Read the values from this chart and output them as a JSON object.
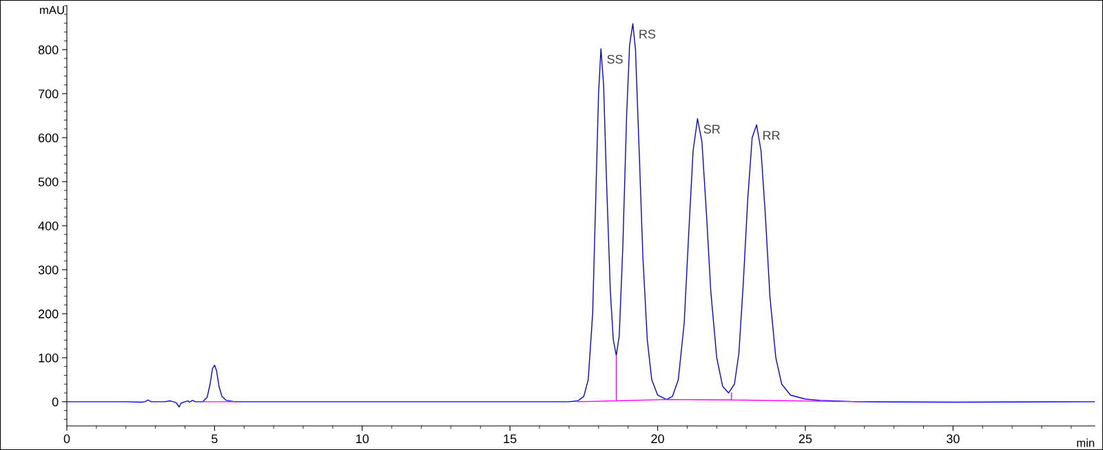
{
  "chart_data": {
    "type": "line",
    "xlabel": "min",
    "ylabel": "mAU",
    "xlim": [
      0,
      34.8
    ],
    "xticks": [
      0,
      5,
      10,
      15,
      20,
      25,
      30
    ],
    "ylim": [
      -55,
      900
    ],
    "yticks": [
      0,
      100,
      200,
      300,
      400,
      500,
      600,
      700,
      800
    ],
    "grid": false,
    "legend": false,
    "marker": "none",
    "line_style": "solid",
    "series": [
      {
        "color": "#0000ff",
        "x": [
          0,
          2.0,
          2.5,
          2.65,
          2.75,
          2.85,
          3.3,
          3.5,
          3.7,
          3.8,
          3.87,
          4.0,
          4.1,
          4.15,
          4.25,
          4.35,
          4.6,
          4.75,
          4.85,
          4.93,
          5.0,
          5.07,
          5.15,
          5.25,
          5.4,
          5.7,
          10,
          17.0,
          17.3,
          17.5,
          17.65,
          17.8,
          17.9,
          18.0,
          18.08,
          18.17,
          18.27,
          18.4,
          18.5,
          18.6,
          18.7,
          18.82,
          18.95,
          19.05,
          19.16,
          19.25,
          19.38,
          19.5,
          19.65,
          19.8,
          20.0,
          20.3,
          20.5,
          20.7,
          20.9,
          21.05,
          21.2,
          21.35,
          21.5,
          21.65,
          21.8,
          22.0,
          22.2,
          22.4,
          22.6,
          22.75,
          22.9,
          23.05,
          23.2,
          23.35,
          23.5,
          23.65,
          23.8,
          24.0,
          24.2,
          24.5,
          25.0,
          25.5,
          26.8,
          30,
          34.8
        ],
        "values": [
          0,
          0,
          -1,
          0,
          4,
          0,
          0,
          2,
          -2,
          -12,
          -3,
          0,
          2,
          -1,
          3,
          0,
          0,
          10,
          40,
          75,
          83,
          70,
          35,
          12,
          3,
          0,
          0,
          0,
          2,
          12,
          50,
          200,
          450,
          700,
          802,
          720,
          500,
          250,
          140,
          105,
          150,
          350,
          650,
          810,
          859,
          800,
          560,
          330,
          140,
          50,
          15,
          5,
          12,
          50,
          180,
          380,
          570,
          643,
          590,
          430,
          250,
          100,
          35,
          20,
          40,
          110,
          270,
          460,
          600,
          629,
          570,
          420,
          240,
          100,
          40,
          15,
          6,
          3,
          0,
          -1,
          0
        ]
      },
      {
        "color": "#ff00ff",
        "x": [
          4.6,
          5.7,
          null,
          17.3,
          18.6,
          18.6,
          18.6,
          20.3,
          22.5,
          22.5,
          22.5,
          26.8
        ],
        "values": [
          0,
          0,
          null,
          0,
          2,
          105,
          2,
          5,
          4,
          20,
          4,
          0
        ]
      }
    ],
    "annotations": [
      {
        "text": "SS",
        "x": 18.08,
        "y": 802
      },
      {
        "text": "RS",
        "x": 19.16,
        "y": 859
      },
      {
        "text": "SR",
        "x": 21.35,
        "y": 643
      },
      {
        "text": "RR",
        "x": 23.35,
        "y": 629
      }
    ]
  }
}
